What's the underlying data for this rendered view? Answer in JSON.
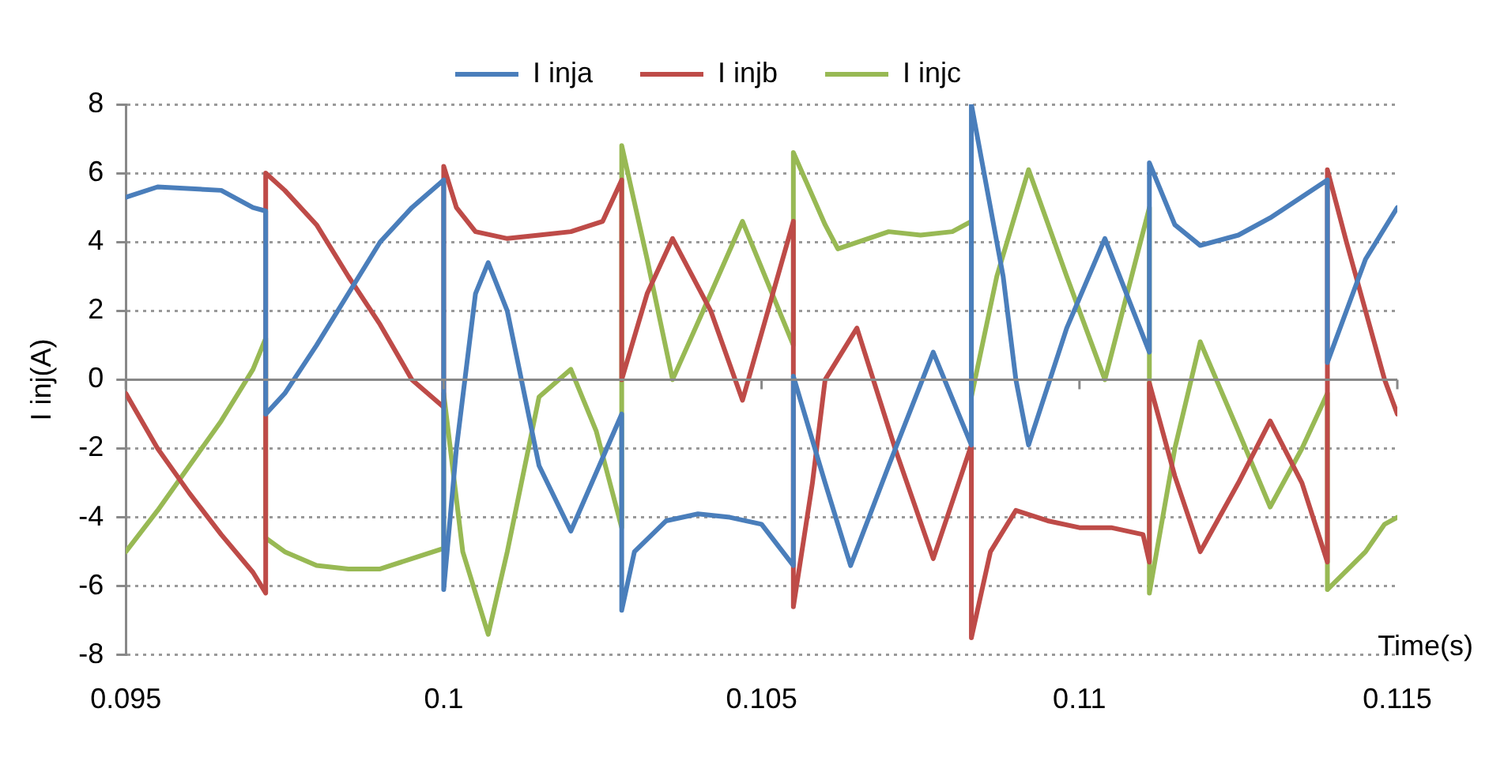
{
  "chart_data": {
    "type": "line",
    "xlabel": "Time(s)",
    "ylabel": "I inj(A)",
    "xlim": [
      0.095,
      0.115
    ],
    "xticks": [
      0.095,
      0.1,
      0.105,
      0.11,
      0.115
    ],
    "ylim": [
      -8,
      8
    ],
    "yticks": [
      -8,
      -6,
      -4,
      -2,
      0,
      2,
      4,
      6,
      8
    ],
    "grid": "y",
    "legend": "top",
    "marker": "none",
    "line_style": "solid",
    "series": [
      {
        "name": "I inja",
        "color": "#4a7ebb",
        "x": [
          0.095,
          0.0955,
          0.0965,
          0.097,
          0.0972,
          0.0972,
          0.0975,
          0.098,
          0.0985,
          0.099,
          0.0995,
          0.1,
          0.1,
          0.1002,
          0.1005,
          0.1007,
          0.101,
          0.1015,
          0.102,
          0.1028,
          0.1028,
          0.103,
          0.1035,
          0.104,
          0.1045,
          0.105,
          0.1055,
          0.1055,
          0.106,
          0.1064,
          0.107,
          0.1077,
          0.1083,
          0.1083,
          0.1085,
          0.1088,
          0.109,
          0.1092,
          0.1098,
          0.1104,
          0.1111,
          0.1111,
          0.1115,
          0.1119,
          0.1125,
          0.113,
          0.1139,
          0.1139,
          0.1142,
          0.1145,
          0.115
        ],
        "values": [
          5.3,
          5.6,
          5.5,
          5.0,
          4.9,
          -1.0,
          -0.4,
          1.0,
          2.5,
          4.0,
          5.0,
          5.8,
          -6.1,
          -2.0,
          2.5,
          3.4,
          2.0,
          -2.5,
          -4.4,
          -1.0,
          -6.7,
          -5.0,
          -4.1,
          -3.9,
          -4.0,
          -4.2,
          -5.4,
          0.1,
          -3.0,
          -5.4,
          -2.5,
          0.8,
          -1.9,
          8.0,
          6.0,
          3.0,
          0.0,
          -1.9,
          1.5,
          4.1,
          0.8,
          6.3,
          4.5,
          3.9,
          4.2,
          4.7,
          5.8,
          0.5,
          2.0,
          3.5,
          5.0
        ]
      },
      {
        "name": "I injb",
        "color": "#be4b48",
        "x": [
          0.095,
          0.0955,
          0.096,
          0.0965,
          0.097,
          0.0972,
          0.0972,
          0.0975,
          0.098,
          0.0985,
          0.099,
          0.0995,
          0.1,
          0.1,
          0.1002,
          0.1005,
          0.101,
          0.1015,
          0.102,
          0.1025,
          0.1028,
          0.1028,
          0.1032,
          0.1036,
          0.1042,
          0.1047,
          0.1055,
          0.1055,
          0.1058,
          0.106,
          0.1065,
          0.1071,
          0.1077,
          0.1083,
          0.1083,
          0.1086,
          0.109,
          0.1095,
          0.11,
          0.1105,
          0.111,
          0.1111,
          0.1111,
          0.1115,
          0.1119,
          0.1125,
          0.113,
          0.1135,
          0.1139,
          0.1139,
          0.1142,
          0.1145,
          0.1148,
          0.115
        ],
        "values": [
          -0.4,
          -2.0,
          -3.3,
          -4.5,
          -5.6,
          -6.2,
          6.0,
          5.5,
          4.5,
          3.0,
          1.6,
          0.0,
          -0.8,
          6.2,
          5.0,
          4.3,
          4.1,
          4.2,
          4.3,
          4.6,
          5.8,
          0.0,
          2.5,
          4.1,
          2.0,
          -0.6,
          4.6,
          -6.6,
          -3.0,
          0.0,
          1.5,
          -2.0,
          -5.2,
          -1.9,
          -7.5,
          -5.0,
          -3.8,
          -4.1,
          -4.3,
          -4.3,
          -4.5,
          -5.3,
          -0.1,
          -2.8,
          -5.0,
          -3.0,
          -1.2,
          -3.0,
          -5.3,
          6.1,
          4.0,
          2.0,
          0.0,
          -1.0
        ]
      },
      {
        "name": "I injc",
        "color": "#98b954",
        "x": [
          0.095,
          0.0955,
          0.096,
          0.0965,
          0.097,
          0.0972,
          0.0972,
          0.0975,
          0.098,
          0.0985,
          0.099,
          0.0995,
          0.1,
          0.1,
          0.1003,
          0.1007,
          0.101,
          0.1015,
          0.102,
          0.1024,
          0.1028,
          0.1028,
          0.1032,
          0.1036,
          0.1042,
          0.1047,
          0.1055,
          0.1055,
          0.106,
          0.1062,
          0.107,
          0.1075,
          0.108,
          0.1083,
          0.1083,
          0.1087,
          0.1092,
          0.1098,
          0.1104,
          0.1111,
          0.1111,
          0.1115,
          0.1119,
          0.1125,
          0.113,
          0.1135,
          0.1139,
          0.1139,
          0.1145,
          0.1148,
          0.115
        ],
        "values": [
          -5.0,
          -3.8,
          -2.5,
          -1.2,
          0.3,
          1.2,
          -4.6,
          -5.0,
          -5.4,
          -5.5,
          -5.5,
          -5.2,
          -4.9,
          -0.4,
          -5.0,
          -7.4,
          -5.0,
          -0.5,
          0.3,
          -1.5,
          -4.3,
          6.8,
          3.5,
          0.0,
          2.5,
          4.6,
          1.0,
          6.6,
          4.5,
          3.8,
          4.3,
          4.2,
          4.3,
          4.6,
          -0.5,
          3.0,
          6.1,
          3.0,
          0.0,
          5.0,
          -6.2,
          -2.0,
          1.1,
          -1.5,
          -3.7,
          -2.0,
          -0.4,
          -6.1,
          -5.0,
          -4.2,
          -4.0
        ]
      }
    ]
  }
}
